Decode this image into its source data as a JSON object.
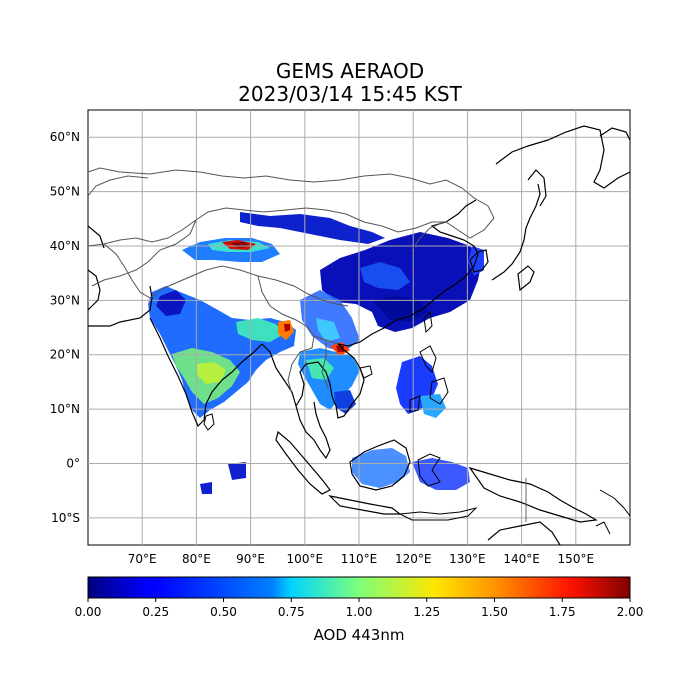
{
  "title": {
    "line1": "GEMS AERAOD",
    "line2": "2023/03/14 15:45 KST"
  },
  "map": {
    "lon_range": [
      60,
      160
    ],
    "lat_range": [
      -15,
      65
    ],
    "gridlines": true,
    "lat_ticks": [
      {
        "value": 60,
        "label": "60°N"
      },
      {
        "value": 50,
        "label": "50°N"
      },
      {
        "value": 40,
        "label": "40°N"
      },
      {
        "value": 30,
        "label": "30°N"
      },
      {
        "value": 20,
        "label": "20°N"
      },
      {
        "value": 10,
        "label": "10°N"
      },
      {
        "value": 0,
        "label": "0°"
      },
      {
        "value": -10,
        "label": "10°S"
      }
    ],
    "lon_ticks": [
      {
        "value": 70,
        "label": "70°E"
      },
      {
        "value": 80,
        "label": "80°E"
      },
      {
        "value": 90,
        "label": "90°E"
      },
      {
        "value": 100,
        "label": "100°E"
      },
      {
        "value": 110,
        "label": "110°E"
      },
      {
        "value": 120,
        "label": "120°E"
      },
      {
        "value": 130,
        "label": "130°E"
      },
      {
        "value": 140,
        "label": "140°E"
      },
      {
        "value": 150,
        "label": "150°E"
      }
    ]
  },
  "colorbar": {
    "label": "AOD 443nm",
    "range": [
      0.0,
      2.0
    ],
    "colormap": "jet",
    "ticks": [
      "0.00",
      "0.25",
      "0.50",
      "0.75",
      "1.00",
      "1.25",
      "1.50",
      "1.75",
      "2.00"
    ]
  }
}
